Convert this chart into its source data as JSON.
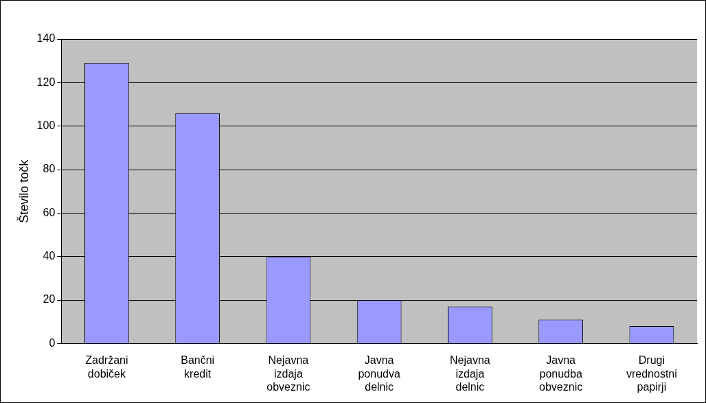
{
  "chart_data": {
    "type": "bar",
    "ylabel": "Število točk",
    "categories": [
      "Zadržani dobiček",
      "Bančni kredit",
      "Nejavna izdaja obveznic",
      "Javna ponudva delnic",
      "Nejavna izdaja delnic",
      "Javna ponudba obveznic",
      "Drugi vrednostni papirji"
    ],
    "values": [
      129,
      106,
      40,
      20,
      17,
      11,
      8
    ],
    "color": "#9999ff",
    "ylim": [
      0,
      140
    ],
    "yticks": [
      0,
      20,
      40,
      60,
      80,
      100,
      120,
      140
    ],
    "grid": "y",
    "legend": false
  }
}
